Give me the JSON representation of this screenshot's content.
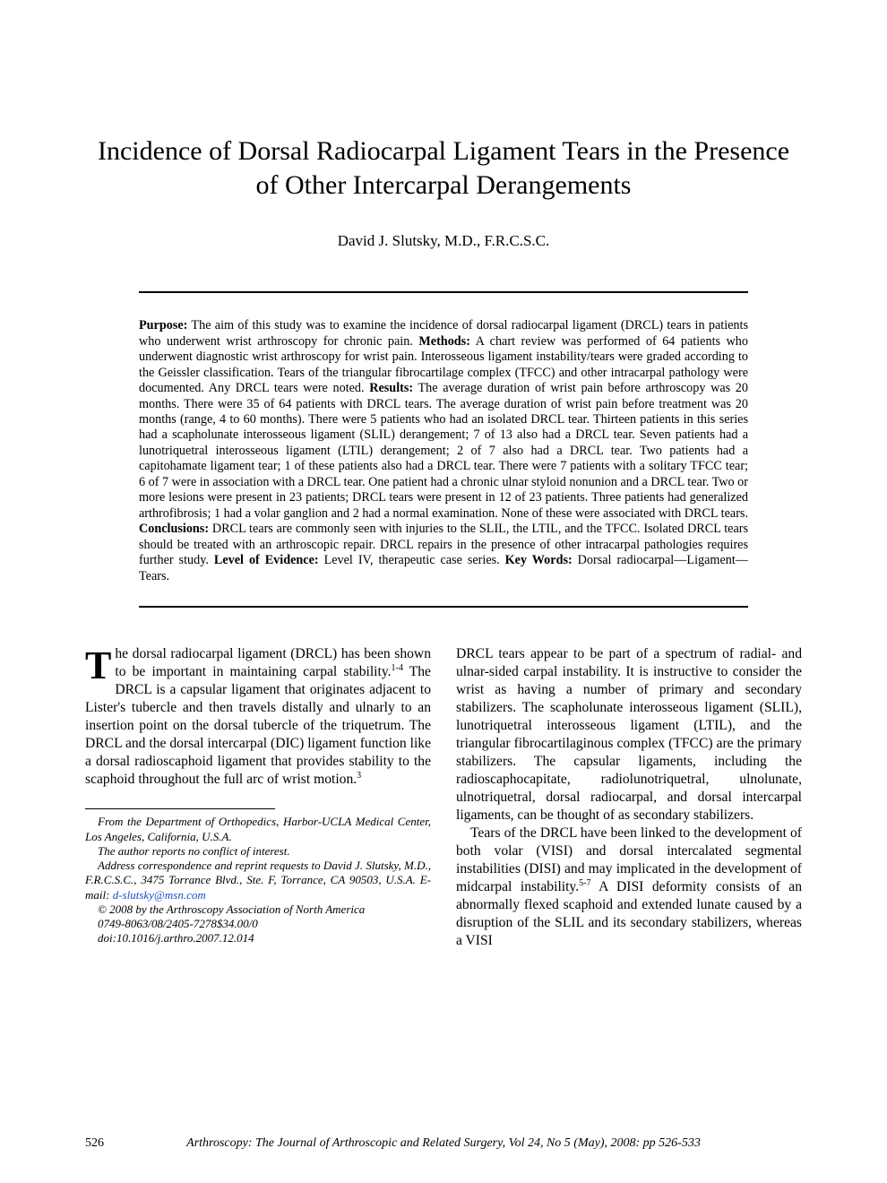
{
  "title": "Incidence of Dorsal Radiocarpal Ligament Tears in the Presence of Other Intercarpal Derangements",
  "author": "David J. Slutsky, M.D., F.R.C.S.C.",
  "abstract": {
    "purpose_label": "Purpose:",
    "purpose": " The aim of this study was to examine the incidence of dorsal radiocarpal ligament (DRCL) tears in patients who underwent wrist arthroscopy for chronic pain. ",
    "methods_label": "Methods:",
    "methods": " A chart review was performed of 64 patients who underwent diagnostic wrist arthroscopy for wrist pain. Interosseous ligament instability/tears were graded according to the Geissler classification. Tears of the triangular fibrocartilage complex (TFCC) and other intracarpal pathology were documented. Any DRCL tears were noted. ",
    "results_label": "Results:",
    "results": " The average duration of wrist pain before arthroscopy was 20 months. There were 35 of 64 patients with DRCL tears. The average duration of wrist pain before treatment was 20 months (range, 4 to 60 months). There were 5 patients who had an isolated DRCL tear. Thirteen patients in this series had a scapholunate interosseous ligament (SLIL) derangement; 7 of 13 also had a DRCL tear. Seven patients had a lunotriquetral interosseous ligament (LTIL) derangement; 2 of 7 also had a DRCL tear. Two patients had a capitohamate ligament tear; 1 of these patients also had a DRCL tear. There were 7 patients with a solitary TFCC tear; 6 of 7 were in association with a DRCL tear. One patient had a chronic ulnar styloid nonunion and a DRCL tear. Two or more lesions were present in 23 patients; DRCL tears were present in 12 of 23 patients. Three patients had generalized arthrofibrosis; 1 had a volar ganglion and 2 had a normal examination. None of these were associated with DRCL tears. ",
    "conclusions_label": "Conclusions:",
    "conclusions": " DRCL tears are commonly seen with injuries to the SLIL, the LTIL, and the TFCC. Isolated DRCL tears should be treated with an arthroscopic repair. DRCL repairs in the presence of other intracarpal pathologies requires further study. ",
    "loe_label": "Level of Evidence:",
    "loe": " Level IV, therapeutic case series. ",
    "kw_label": "Key Words:",
    "kw": " Dorsal radiocarpal—Ligament—Tears."
  },
  "body": {
    "left_dropcap": "T",
    "left_p1a": "he dorsal radiocarpal ligament (DRCL) has been shown to be important in maintaining carpal stability.",
    "left_sup1": "1-4",
    "left_p1b": " The DRCL is a capsular ligament that originates adjacent to Lister's tubercle and then travels distally and ulnarly to an insertion point on the dorsal tubercle of the triquetrum. The DRCL and the dorsal intercarpal (DIC) ligament function like a dorsal radioscaphoid ligament that provides stability to the scaphoid throughout the full arc of wrist motion.",
    "left_sup2": "3",
    "right_p1": "DRCL tears appear to be part of a spectrum of radial- and ulnar-sided carpal instability. It is instructive to consider the wrist as having a number of primary and secondary stabilizers. The scapholunate interosseous ligament (SLIL), lunotriquetral interosseous ligament (LTIL), and the triangular fibrocartilaginous complex (TFCC) are the primary stabilizers. The capsular ligaments, including the radioscaphocapitate, radiolunotriquetral, ulnolunate, ulnotriquetral, dorsal radiocarpal, and dorsal intercarpal ligaments, can be thought of as secondary stabilizers.",
    "right_p2a": "Tears of the DRCL have been linked to the development of both volar (VISI) and dorsal intercalated segmental instabilities (DISI) and may implicated in the development of midcarpal instability.",
    "right_sup1": "5-7",
    "right_p2b": " A DISI deformity consists of an abnormally flexed scaphoid and extended lunate caused by a disruption of the SLIL and its secondary stabilizers, whereas a VISI"
  },
  "footnotes": {
    "l1": "From the Department of Orthopedics, Harbor-UCLA Medical Center, Los Angeles, California, U.S.A.",
    "l2": "The author reports no conflict of interest.",
    "l3a": "Address correspondence and reprint requests to David J. Slutsky, M.D., F.R.C.S.C., 3475 Torrance Blvd., Ste. F, Torrance, CA 90503, U.S.A. E-mail: ",
    "l3_link": "d-slutsky@msn.com",
    "l4": "© 2008 by the Arthroscopy Association of North America",
    "l5": "0749-8063/08/2405-7278$34.00/0",
    "l6": "doi:10.1016/j.arthro.2007.12.014"
  },
  "running": {
    "page": "526",
    "journal": "Arthroscopy: The Journal of Arthroscopic and Related Surgery, Vol 24, No 5 (May), 2008: pp 526-533"
  }
}
